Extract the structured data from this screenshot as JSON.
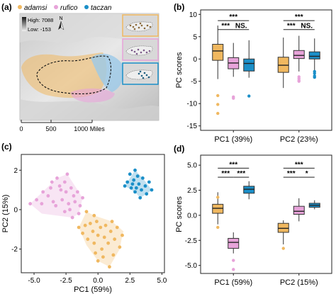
{
  "colors": {
    "adamsi": "#f0b860",
    "rufico": "#e7a3d9",
    "taczan": "#1b8fc8",
    "sea": "#9bc9e8"
  },
  "panel_a": {
    "letter": "(a)",
    "legend": [
      "adamsi",
      "rufico",
      "taczan"
    ],
    "elev_high": "High: 7088",
    "elev_low": "Low: -153",
    "north": "N",
    "scale_ticks": [
      "0",
      "500",
      "1000 Miles"
    ]
  },
  "chart_data": [
    {
      "panel": "(b)",
      "type": "box",
      "categories": [
        "PC1 (39%)",
        "PC2 (23%)"
      ],
      "ylabel": "PC scores",
      "ylim": [
        -16,
        11
      ],
      "yticks": [
        10,
        5,
        0,
        -5,
        -10,
        -15
      ],
      "series": [
        {
          "name": "adamsi",
          "boxes": [
            {
              "cat": 0,
              "whislo": -4.5,
              "q1": -0.3,
              "med": 1.8,
              "q3": 3.3,
              "whishi": 7.5,
              "fliers": [
                -8.2,
                -10.2,
                -12.2
              ]
            },
            {
              "cat": 1,
              "whislo": -6.5,
              "q1": -3.0,
              "med": -1.4,
              "q3": 0.4,
              "whishi": 4.8,
              "fliers": []
            }
          ]
        },
        {
          "name": "rufico",
          "boxes": [
            {
              "cat": 0,
              "whislo": -4.0,
              "q1": -2.2,
              "med": -0.9,
              "q3": 0.3,
              "whishi": 3.6,
              "fliers": [
                -8.5,
                -8.8
              ]
            },
            {
              "cat": 1,
              "whislo": -2.8,
              "q1": 0.1,
              "med": 0.8,
              "q3": 1.9,
              "whishi": 5.2,
              "fliers": [
                -4.0,
                -4.4,
                -4.8,
                -5.0
              ]
            }
          ]
        },
        {
          "name": "taczan",
          "boxes": [
            {
              "cat": 0,
              "whislo": -4.2,
              "q1": -2.7,
              "med": -1.0,
              "q3": 0.0,
              "whishi": 4.2,
              "fliers": [
                -8.3
              ]
            },
            {
              "cat": 1,
              "whislo": -2.5,
              "q1": 0.0,
              "med": 0.6,
              "q3": 1.6,
              "whishi": 4.6,
              "fliers": [
                -2.8,
                -3.2,
                -3.8,
                -4.1
              ]
            }
          ]
        }
      ],
      "significance": [
        {
          "cat": 0,
          "from": 0,
          "to": 2,
          "y": 8.6,
          "label": "***"
        },
        {
          "cat": 0,
          "from": 0,
          "to": 1,
          "y": 6.6,
          "label": "***"
        },
        {
          "cat": 0,
          "from": 1,
          "to": 2,
          "y": 6.6,
          "label": "NS."
        },
        {
          "cat": 1,
          "from": 0,
          "to": 2,
          "y": 8.6,
          "label": "***"
        },
        {
          "cat": 1,
          "from": 0,
          "to": 1,
          "y": 6.6,
          "label": "***"
        },
        {
          "cat": 1,
          "from": 1,
          "to": 2,
          "y": 6.6,
          "label": "NS."
        }
      ]
    },
    {
      "panel": "(c)",
      "type": "scatter",
      "xlabel": "PC1 (59%)",
      "ylabel": "PC2 (15%)",
      "xlim": [
        -6,
        5.2
      ],
      "ylim": [
        -3.2,
        2.8
      ],
      "xticks": [
        -5.0,
        -2.5,
        0.0,
        2.5,
        5.0
      ],
      "yticks": [
        2,
        0,
        -2
      ],
      "series": [
        {
          "name": "rufico",
          "points": [
            [
              -5.3,
              0.3
            ],
            [
              -4.8,
              0.5
            ],
            [
              -4.4,
              0.3
            ],
            [
              -4.3,
              0.9
            ],
            [
              -3.9,
              0.7
            ],
            [
              -3.7,
              1.1
            ],
            [
              -3.5,
              0.4
            ],
            [
              -3.3,
              0.2
            ],
            [
              -3.2,
              1.6
            ],
            [
              -3.0,
              1.2
            ],
            [
              -2.9,
              1.0
            ],
            [
              -2.8,
              0.5
            ],
            [
              -2.6,
              1.4
            ],
            [
              -2.5,
              0.9
            ],
            [
              -2.3,
              0.3
            ],
            [
              -2.2,
              0.0
            ],
            [
              -2.1,
              1.1
            ],
            [
              -1.9,
              0.7
            ],
            [
              -1.8,
              0.4
            ],
            [
              -1.6,
              0.9
            ],
            [
              -1.5,
              -0.2
            ],
            [
              -1.4,
              0.2
            ],
            [
              -1.2,
              0.6
            ],
            [
              -2.0,
              -0.4
            ],
            [
              -2.6,
              -0.1
            ],
            [
              -3.6,
              1.4
            ],
            [
              -2.4,
              1.8
            ]
          ]
        },
        {
          "name": "taczan",
          "points": [
            [
              2.1,
              1.2
            ],
            [
              2.3,
              1.4
            ],
            [
              2.5,
              1.8
            ],
            [
              2.6,
              1.1
            ],
            [
              2.8,
              1.5
            ],
            [
              2.9,
              0.9
            ],
            [
              3.1,
              1.7
            ],
            [
              3.2,
              1.3
            ],
            [
              3.4,
              1.0
            ],
            [
              3.5,
              1.6
            ],
            [
              3.7,
              1.2
            ],
            [
              3.8,
              0.8
            ],
            [
              4.0,
              1.4
            ],
            [
              4.2,
              1.0
            ],
            [
              2.9,
              2.0
            ],
            [
              3.3,
              0.6
            ],
            [
              3.0,
              1.1
            ],
            [
              2.7,
              1.3
            ]
          ]
        },
        {
          "name": "adamsi",
          "points": [
            [
              -1.5,
              -0.9
            ],
            [
              -1.2,
              -1.2
            ],
            [
              -1.0,
              -0.8
            ],
            [
              -0.8,
              -1.5
            ],
            [
              -0.6,
              -0.7
            ],
            [
              -0.4,
              -1.1
            ],
            [
              -0.3,
              -1.7
            ],
            [
              -0.1,
              -0.6
            ],
            [
              0.0,
              -1.3
            ],
            [
              0.2,
              -0.9
            ],
            [
              0.3,
              -2.0
            ],
            [
              0.5,
              -1.4
            ],
            [
              0.6,
              -0.8
            ],
            [
              0.8,
              -1.7
            ],
            [
              1.0,
              -1.1
            ],
            [
              1.2,
              -2.3
            ],
            [
              1.3,
              -1.5
            ],
            [
              1.5,
              -0.9
            ],
            [
              1.7,
              -1.9
            ],
            [
              1.9,
              -1.3
            ],
            [
              0.0,
              -2.6
            ],
            [
              -0.2,
              -2.2
            ],
            [
              0.9,
              -2.9
            ],
            [
              -0.9,
              -0.1
            ],
            [
              -0.3,
              -0.3
            ],
            [
              1.1,
              -0.6
            ],
            [
              0.4,
              -2.4
            ]
          ]
        }
      ],
      "hulls": {
        "rufico": [
          [
            -5.3,
            0.3
          ],
          [
            -3.2,
            1.6
          ],
          [
            -2.4,
            1.8
          ],
          [
            -1.2,
            0.6
          ],
          [
            -1.5,
            -0.2
          ],
          [
            -2.0,
            -0.4
          ],
          [
            -4.4,
            -0.2
          ]
        ],
        "taczan": [
          [
            2.1,
            1.2
          ],
          [
            2.9,
            2.0
          ],
          [
            3.5,
            1.6
          ],
          [
            4.2,
            1.0
          ],
          [
            3.8,
            0.8
          ],
          [
            3.3,
            0.6
          ],
          [
            2.9,
            0.9
          ]
        ],
        "adamsi": [
          [
            -1.5,
            -0.9
          ],
          [
            -0.9,
            -0.1
          ],
          [
            -0.3,
            -0.3
          ],
          [
            1.1,
            -0.6
          ],
          [
            2.0,
            -1.1
          ],
          [
            1.9,
            -1.3
          ],
          [
            1.7,
            -2.0
          ],
          [
            0.9,
            -2.9
          ],
          [
            0.0,
            -2.6
          ],
          [
            -0.9,
            -1.8
          ]
        ]
      }
    },
    {
      "panel": "(d)",
      "type": "box",
      "categories": [
        "PC1 (59%)",
        "PC2 (15%)"
      ],
      "ylabel": "PC scores",
      "ylim": [
        -5.8,
        6.0
      ],
      "yticks": [
        5.0,
        2.5,
        0.0,
        -2.5,
        -5.0
      ],
      "series": [
        {
          "name": "adamsi",
          "boxes": [
            {
              "cat": 0,
              "whislo": -0.9,
              "q1": 0.2,
              "med": 0.7,
              "q3": 1.1,
              "whishi": 2.3,
              "fliers": [
                -1.2,
                1.8
              ]
            },
            {
              "cat": 1,
              "whislo": -2.9,
              "q1": -1.7,
              "med": -1.3,
              "q3": -0.8,
              "whishi": -0.5,
              "fliers": [
                -3.3
              ]
            }
          ]
        },
        {
          "name": "rufico",
          "boxes": [
            {
              "cat": 0,
              "whislo": -3.8,
              "q1": -3.3,
              "med": -2.7,
              "q3": -2.3,
              "whishi": -1.7,
              "fliers": [
                -4.5,
                -5.4
              ]
            },
            {
              "cat": 1,
              "whislo": -0.6,
              "q1": 0.1,
              "med": 0.4,
              "q3": 0.9,
              "whishi": 1.7,
              "fliers": []
            }
          ]
        },
        {
          "name": "taczan",
          "boxes": [
            {
              "cat": 0,
              "whislo": 1.6,
              "q1": 2.2,
              "med": 2.6,
              "q3": 2.9,
              "whishi": 3.4,
              "fliers": []
            },
            {
              "cat": 1,
              "whislo": 0.6,
              "q1": 0.8,
              "med": 1.0,
              "q3": 1.2,
              "whishi": 1.5,
              "fliers": []
            }
          ]
        }
      ],
      "significance": [
        {
          "cat": 0,
          "from": 0,
          "to": 2,
          "y": 4.7,
          "label": "***"
        },
        {
          "cat": 0,
          "from": 0,
          "to": 1,
          "y": 3.8,
          "label": "***"
        },
        {
          "cat": 0,
          "from": 1,
          "to": 2,
          "y": 3.8,
          "label": "***"
        },
        {
          "cat": 1,
          "from": 0,
          "to": 2,
          "y": 4.7,
          "label": "***"
        },
        {
          "cat": 1,
          "from": 0,
          "to": 1,
          "y": 3.8,
          "label": "***"
        },
        {
          "cat": 1,
          "from": 1,
          "to": 2,
          "y": 3.8,
          "label": "*"
        }
      ]
    }
  ]
}
